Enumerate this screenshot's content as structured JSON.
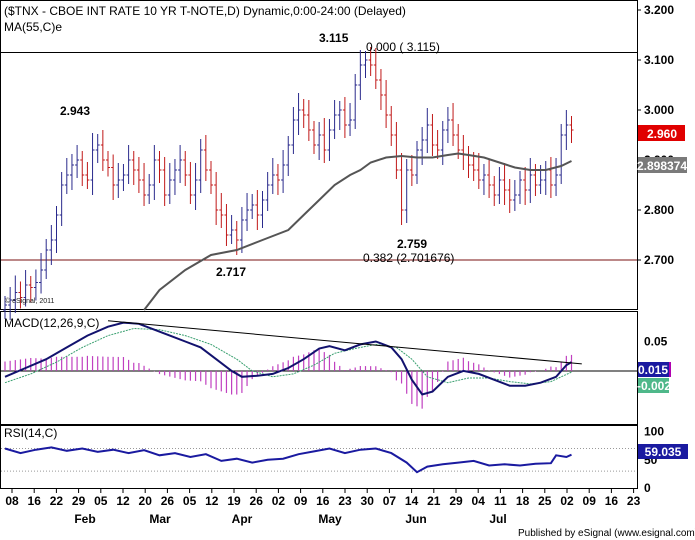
{
  "chart_data": {
    "type": "ohlc",
    "title": "($TNX - CBOE INT RATE 10 YR T-NOTE,D) Dynamic,0:00-24:00 (Delayed)",
    "ma_label": "MA(55,C)e",
    "watermark": "© eSignal, 2011",
    "footer": "Published by eSignal (www.esignal.com)",
    "price": {
      "ylim": [
        2.6,
        3.2
      ],
      "ticks": [
        "3.200",
        "3.100",
        "3.000",
        "2.900",
        "2.800",
        "2.700"
      ],
      "tick_values": [
        3.2,
        3.1,
        3.0,
        2.9,
        2.8,
        2.7
      ],
      "last_price": "2.960",
      "ma_value": "2.898374",
      "hlines": [
        {
          "value": 3.115,
          "color": "#000000"
        },
        {
          "value": 2.7,
          "color": "#7a1010"
        }
      ],
      "annotations": {
        "high": "3.115",
        "fib0": "0.000 ( 3.115)",
        "left_high": "2.943",
        "low1": "2.717",
        "low2": "2.759",
        "fib382": "0.382 (2.701676)"
      },
      "closes": [
        2.61,
        2.62,
        2.635,
        2.625,
        2.65,
        2.645,
        2.655,
        2.68,
        2.72,
        2.74,
        2.79,
        2.85,
        2.87,
        2.89,
        2.9,
        2.87,
        2.86,
        2.92,
        2.93,
        2.9,
        2.885,
        2.85,
        2.86,
        2.87,
        2.9,
        2.88,
        2.86,
        2.83,
        2.85,
        2.9,
        2.88,
        2.83,
        2.86,
        2.88,
        2.9,
        2.87,
        2.83,
        2.86,
        2.92,
        2.88,
        2.85,
        2.8,
        2.79,
        2.75,
        2.76,
        2.74,
        2.78,
        2.8,
        2.81,
        2.79,
        2.82,
        2.85,
        2.87,
        2.86,
        2.89,
        2.93,
        2.98,
        3.0,
        2.99,
        2.96,
        2.93,
        2.95,
        2.92,
        2.96,
        2.99,
        3.0,
        2.97,
        2.98,
        3.05,
        3.09,
        3.1,
        3.09,
        3.06,
        3.03,
        2.99,
        2.95,
        2.88,
        2.8,
        2.88,
        2.87,
        2.92,
        2.94,
        2.97,
        2.93,
        2.92,
        2.96,
        2.98,
        2.95,
        2.92,
        2.91,
        2.89,
        2.88,
        2.86,
        2.87,
        2.85,
        2.83,
        2.86,
        2.84,
        2.82,
        2.83,
        2.86,
        2.84,
        2.87,
        2.85,
        2.86,
        2.88,
        2.85,
        2.87,
        2.95,
        2.97,
        2.96
      ],
      "ma_start_index": 27,
      "ma_points": [
        [
          27,
          2.6
        ],
        [
          30,
          2.64
        ],
        [
          35,
          2.68
        ],
        [
          40,
          2.71
        ],
        [
          45,
          2.72
        ],
        [
          50,
          2.74
        ],
        [
          55,
          2.76
        ],
        [
          58,
          2.79
        ],
        [
          61,
          2.82
        ],
        [
          64,
          2.85
        ],
        [
          67,
          2.87
        ],
        [
          69,
          2.88
        ],
        [
          71,
          2.895
        ],
        [
          74,
          2.905
        ],
        [
          77,
          2.908
        ],
        [
          80,
          2.905
        ],
        [
          83,
          2.905
        ],
        [
          86,
          2.91
        ],
        [
          88,
          2.913
        ],
        [
          90,
          2.91
        ],
        [
          93,
          2.905
        ],
        [
          96,
          2.895
        ],
        [
          99,
          2.885
        ],
        [
          102,
          2.88
        ],
        [
          105,
          2.88
        ],
        [
          108,
          2.888
        ],
        [
          110,
          2.898
        ]
      ]
    },
    "macd": {
      "label": "MACD(12,26,9,C)",
      "ylim": [
        -0.09,
        0.1
      ],
      "ticks": [
        "0.05"
      ],
      "tick_values": [
        0.05
      ],
      "macd_value": "0.015",
      "signal_value": "-0.002",
      "macd_points": [
        [
          0,
          -0.01
        ],
        [
          4,
          0.005
        ],
        [
          8,
          0.02
        ],
        [
          12,
          0.04
        ],
        [
          16,
          0.06
        ],
        [
          20,
          0.075
        ],
        [
          23,
          0.082
        ],
        [
          26,
          0.08
        ],
        [
          29,
          0.07
        ],
        [
          32,
          0.06
        ],
        [
          35,
          0.05
        ],
        [
          38,
          0.04
        ],
        [
          41,
          0.02
        ],
        [
          44,
          0.0
        ],
        [
          46,
          -0.01
        ],
        [
          49,
          -0.008
        ],
        [
          52,
          -0.005
        ],
        [
          55,
          0.005
        ],
        [
          58,
          0.02
        ],
        [
          61,
          0.038
        ],
        [
          63,
          0.042
        ],
        [
          66,
          0.035
        ],
        [
          69,
          0.045
        ],
        [
          72,
          0.05
        ],
        [
          75,
          0.04
        ],
        [
          77,
          0.02
        ],
        [
          79,
          -0.015
        ],
        [
          81,
          -0.04
        ],
        [
          83,
          -0.035
        ],
        [
          86,
          -0.01
        ],
        [
          89,
          0.0
        ],
        [
          92,
          -0.005
        ],
        [
          95,
          -0.015
        ],
        [
          98,
          -0.025
        ],
        [
          101,
          -0.025
        ],
        [
          104,
          -0.02
        ],
        [
          107,
          -0.01
        ],
        [
          109,
          0.01
        ],
        [
          110,
          0.015
        ]
      ],
      "signal_points": [
        [
          0,
          -0.02
        ],
        [
          5,
          -0.005
        ],
        [
          10,
          0.015
        ],
        [
          15,
          0.04
        ],
        [
          20,
          0.06
        ],
        [
          25,
          0.072
        ],
        [
          30,
          0.07
        ],
        [
          35,
          0.06
        ],
        [
          40,
          0.045
        ],
        [
          45,
          0.02
        ],
        [
          48,
          0.0
        ],
        [
          52,
          -0.01
        ],
        [
          56,
          -0.005
        ],
        [
          60,
          0.01
        ],
        [
          64,
          0.03
        ],
        [
          68,
          0.038
        ],
        [
          72,
          0.045
        ],
        [
          76,
          0.04
        ],
        [
          79,
          0.02
        ],
        [
          82,
          -0.01
        ],
        [
          86,
          -0.02
        ],
        [
          90,
          -0.012
        ],
        [
          94,
          -0.012
        ],
        [
          98,
          -0.018
        ],
        [
          102,
          -0.022
        ],
        [
          106,
          -0.018
        ],
        [
          108,
          -0.01
        ],
        [
          110,
          -0.002
        ]
      ],
      "trendline": [
        [
          20,
          0.085
        ],
        [
          112,
          0.012
        ]
      ]
    },
    "rsi": {
      "label": "RSI(14,C)",
      "ylim": [
        0,
        110
      ],
      "ticks": [
        "100",
        "50",
        "0"
      ],
      "tick_values": [
        100,
        50,
        0
      ],
      "guides": [
        70,
        30
      ],
      "value": "59.035",
      "points": [
        [
          0,
          70
        ],
        [
          3,
          62
        ],
        [
          6,
          68
        ],
        [
          9,
          72
        ],
        [
          12,
          66
        ],
        [
          15,
          70
        ],
        [
          18,
          64
        ],
        [
          21,
          68
        ],
        [
          24,
          62
        ],
        [
          27,
          67
        ],
        [
          30,
          58
        ],
        [
          33,
          62
        ],
        [
          36,
          55
        ],
        [
          39,
          60
        ],
        [
          42,
          48
        ],
        [
          45,
          52
        ],
        [
          48,
          45
        ],
        [
          51,
          50
        ],
        [
          54,
          52
        ],
        [
          57,
          60
        ],
        [
          60,
          65
        ],
        [
          63,
          70
        ],
        [
          66,
          62
        ],
        [
          69,
          68
        ],
        [
          72,
          70
        ],
        [
          75,
          62
        ],
        [
          78,
          45
        ],
        [
          80,
          28
        ],
        [
          82,
          38
        ],
        [
          85,
          42
        ],
        [
          88,
          45
        ],
        [
          91,
          48
        ],
        [
          94,
          40
        ],
        [
          97,
          42
        ],
        [
          100,
          40
        ],
        [
          103,
          43
        ],
        [
          106,
          44
        ],
        [
          107,
          58
        ],
        [
          109,
          55
        ],
        [
          110,
          59
        ]
      ]
    },
    "xaxis": {
      "ticks": [
        "08",
        "16",
        "22",
        "29",
        "05",
        "12",
        "20",
        "26",
        "05",
        "12",
        "19",
        "26",
        "02",
        "09",
        "16",
        "23",
        "30",
        "07",
        "14",
        "21",
        "29",
        "04",
        "11",
        "18",
        "25",
        "02",
        "09",
        "16",
        "23"
      ],
      "months": [
        "Feb",
        "Mar",
        "Apr",
        "May",
        "Jun",
        "Jul"
      ]
    }
  }
}
